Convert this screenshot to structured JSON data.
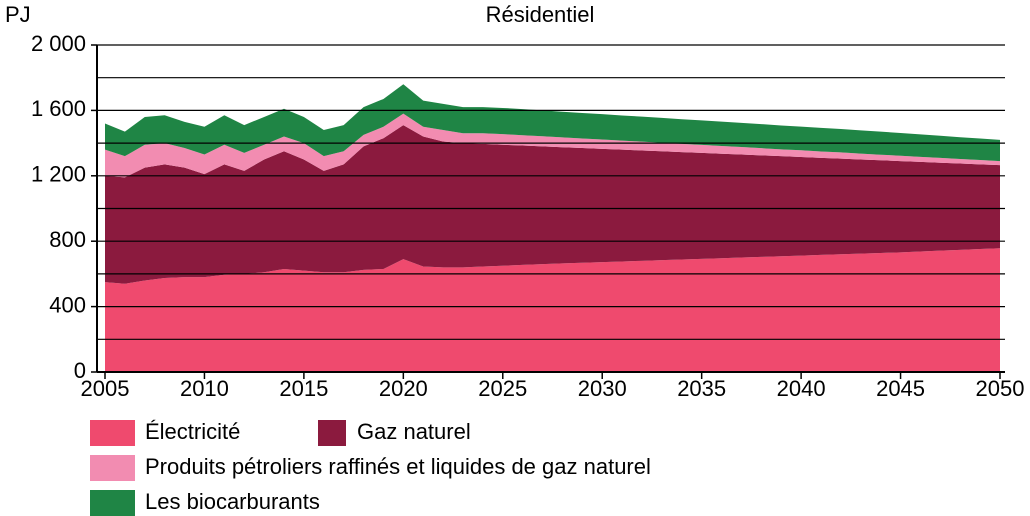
{
  "chart_data": {
    "type": "stacked_area",
    "title": "Résidentiel",
    "y_label": "PJ",
    "x": [
      2005,
      2006,
      2007,
      2008,
      2009,
      2010,
      2011,
      2012,
      2013,
      2014,
      2015,
      2016,
      2017,
      2018,
      2019,
      2020,
      2021,
      2022,
      2023,
      2024,
      2025,
      2026,
      2027,
      2028,
      2029,
      2030,
      2031,
      2032,
      2033,
      2034,
      2035,
      2036,
      2037,
      2038,
      2039,
      2040,
      2041,
      2042,
      2043,
      2044,
      2045,
      2046,
      2047,
      2048,
      2049,
      2050
    ],
    "series": [
      {
        "name": "Électricité",
        "color": "#ef4a6e",
        "values": [
          550,
          540,
          560,
          575,
          580,
          580,
          595,
          600,
          610,
          630,
          620,
          610,
          610,
          625,
          630,
          690,
          645,
          640,
          640,
          645,
          650,
          655,
          660,
          664,
          668,
          672,
          676,
          680,
          684,
          688,
          692,
          696,
          700,
          704,
          708,
          712,
          716,
          720,
          724,
          728,
          732,
          737,
          742,
          747,
          752,
          757
        ]
      },
      {
        "name": "Gaz naturel",
        "color": "#8b1a3e",
        "values": [
          650,
          650,
          690,
          695,
          670,
          630,
          675,
          630,
          690,
          720,
          680,
          620,
          660,
          755,
          800,
          820,
          795,
          770,
          760,
          750,
          740,
          730,
          720,
          711,
          702,
          693,
          684,
          675,
          666,
          657,
          648,
          639,
          630,
          621,
          612,
          603,
          594,
          585,
          576,
          567,
          558,
          548,
          538,
          528,
          518,
          508
        ]
      },
      {
        "name": "Produits pétroliers raffinés et liquides de gaz naturel",
        "color": "#f28cb1",
        "values": [
          160,
          130,
          140,
          130,
          120,
          120,
          120,
          110,
          90,
          90,
          100,
          90,
          80,
          70,
          70,
          70,
          60,
          70,
          60,
          65,
          65,
          63,
          62,
          60,
          58,
          57,
          55,
          54,
          52,
          50,
          49,
          47,
          46,
          44,
          42,
          41,
          39,
          38,
          36,
          34,
          33,
          31,
          30,
          28,
          27,
          25
        ]
      },
      {
        "name": "Les biocarburants",
        "color": "#1f8545",
        "values": [
          160,
          150,
          170,
          170,
          160,
          170,
          180,
          170,
          170,
          170,
          160,
          160,
          160,
          170,
          170,
          180,
          160,
          160,
          160,
          160,
          160,
          160,
          158,
          157,
          156,
          155,
          154,
          153,
          152,
          151,
          150,
          149,
          148,
          147,
          146,
          145,
          144,
          143,
          142,
          141,
          139,
          137,
          135,
          133,
          131,
          130
        ]
      }
    ],
    "xlim": [
      2005,
      2050
    ],
    "xticks": [
      2005,
      2010,
      2015,
      2020,
      2025,
      2030,
      2035,
      2040,
      2045,
      2050
    ],
    "ylim": [
      0,
      2000
    ],
    "yticks": [
      0,
      400,
      800,
      {
        "value": 1200,
        "label": "1 200"
      },
      {
        "value": 1600,
        "label": "1 600"
      },
      {
        "value": 2000,
        "label": "2 000"
      }
    ],
    "grid": [
      200,
      400,
      600,
      800,
      1000,
      1200,
      1400,
      1600,
      1800,
      2000
    ]
  }
}
